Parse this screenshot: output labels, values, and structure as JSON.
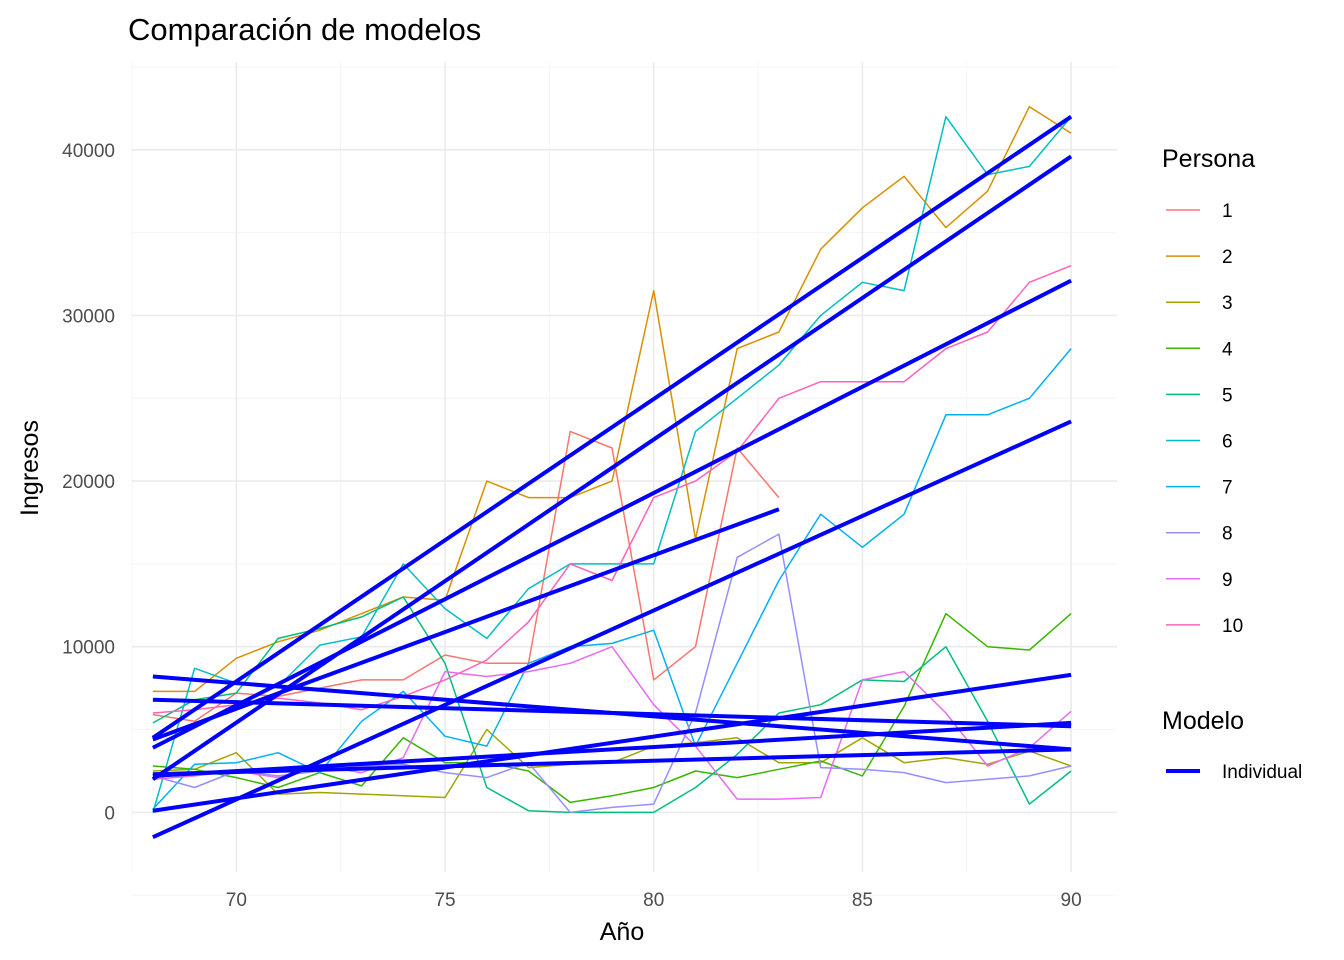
{
  "chart_data": {
    "type": "line",
    "title": "Comparación de modelos",
    "xlabel": "Año",
    "ylabel": "Ingresos",
    "xlim": [
      67.5,
      91.1
    ],
    "ylim": [
      -3600,
      45300
    ],
    "x_ticks": [
      70,
      75,
      80,
      85,
      90
    ],
    "y_ticks": [
      0,
      10000,
      20000,
      30000,
      40000
    ],
    "grid": true,
    "legend_position": "right",
    "legend": {
      "persona_title": "Persona",
      "modelo_title": "Modelo",
      "modelo_entries": [
        {
          "label": "Individual",
          "color": "#0000ff"
        }
      ]
    },
    "series": [
      {
        "name": "1",
        "color": "#f8766d",
        "x": [
          68,
          69,
          70,
          71,
          72,
          73,
          74,
          75,
          76,
          77,
          78,
          79,
          80,
          81,
          82,
          83
        ],
        "y": [
          5900,
          5500,
          7200,
          7000,
          7500,
          8000,
          8000,
          9500,
          9000,
          9000,
          23000,
          22000,
          8000,
          10000,
          22000,
          19000
        ]
      },
      {
        "name": "2",
        "color": "#d89000",
        "x": [
          68,
          69,
          70,
          71,
          72,
          73,
          74,
          75,
          76,
          77,
          78,
          79,
          80,
          81,
          82,
          83,
          84,
          85,
          86,
          87,
          88,
          89,
          90
        ],
        "y": [
          7300,
          7300,
          9300,
          10300,
          11000,
          12000,
          13000,
          12800,
          20000,
          19000,
          19000,
          20000,
          31500,
          16500,
          28000,
          29000,
          34000,
          36500,
          38400,
          35300,
          37500,
          42600,
          41000
        ]
      },
      {
        "name": "3",
        "color": "#a3a500",
        "x": [
          68,
          69,
          70,
          71,
          72,
          73,
          74,
          75,
          76,
          77,
          78,
          79,
          80,
          81,
          82,
          83,
          84,
          85,
          86,
          87,
          88,
          89,
          90
        ],
        "y": [
          2500,
          2600,
          3600,
          1100,
          1200,
          1100,
          1000,
          900,
          5000,
          2700,
          2900,
          3000,
          4000,
          4200,
          4500,
          3000,
          3000,
          4500,
          3000,
          3300,
          2900,
          3700,
          2800
        ]
      },
      {
        "name": "4",
        "color": "#39b600",
        "x": [
          68,
          69,
          70,
          71,
          72,
          73,
          74,
          75,
          76,
          77,
          78,
          79,
          80,
          81,
          82,
          83,
          84,
          85,
          86,
          87,
          88,
          89,
          90
        ],
        "y": [
          2800,
          2600,
          2100,
          1500,
          2400,
          1600,
          4500,
          3000,
          3000,
          2500,
          600,
          1000,
          1500,
          2500,
          2100,
          2600,
          3100,
          2200,
          6400,
          12000,
          10000,
          9800,
          12000
        ]
      },
      {
        "name": "5",
        "color": "#00bf7d",
        "x": [
          68,
          69,
          70,
          71,
          72,
          73,
          74,
          75,
          76,
          77,
          78,
          79,
          80,
          81,
          82,
          83,
          84,
          85,
          86,
          87,
          88,
          89,
          90
        ],
        "y": [
          5400,
          6800,
          7200,
          10500,
          11100,
          11800,
          13000,
          9000,
          1500,
          100,
          0,
          0,
          0,
          1500,
          3500,
          6000,
          6500,
          8000,
          7900,
          10000,
          5500,
          500,
          2500
        ]
      },
      {
        "name": "6",
        "color": "#00bfc4",
        "x": [
          68,
          69,
          70,
          71,
          72,
          73,
          74,
          75,
          76,
          77,
          78,
          79,
          80,
          81,
          82,
          83,
          84,
          85,
          86,
          87,
          88,
          89,
          90
        ],
        "y": [
          0,
          8700,
          7800,
          7600,
          10100,
          10600,
          15000,
          12300,
          10500,
          13500,
          15000,
          15000,
          15000,
          23000,
          25000,
          27000,
          30000,
          32000,
          31500,
          42000,
          38500,
          39000,
          42000
        ]
      },
      {
        "name": "7",
        "color": "#00b0f6",
        "x": [
          68,
          69,
          70,
          71,
          72,
          73,
          74,
          75,
          76,
          77,
          78,
          79,
          80,
          81,
          82,
          83,
          84,
          85,
          86,
          87,
          88,
          89,
          90
        ],
        "y": [
          200,
          2900,
          3000,
          3600,
          2400,
          5500,
          7300,
          4600,
          4000,
          9000,
          10000,
          10200,
          11000,
          4000,
          9000,
          14000,
          18000,
          16000,
          18000,
          24000,
          24000,
          25000,
          28000
        ]
      },
      {
        "name": "8",
        "color": "#9590ff",
        "x": [
          68,
          69,
          70,
          71,
          72,
          73,
          74,
          75,
          76,
          77,
          78,
          79,
          80,
          81,
          82,
          83,
          84,
          85,
          86,
          87,
          88,
          89,
          90
        ],
        "y": [
          2200,
          1500,
          2500,
          2200,
          2500,
          2800,
          2900,
          2400,
          2100,
          3000,
          0,
          300,
          500,
          6000,
          15400,
          16800,
          2700,
          2600,
          2400,
          1800,
          2000,
          2200,
          2800
        ]
      },
      {
        "name": "9",
        "color": "#e76bf3",
        "x": [
          68,
          69,
          70,
          71,
          72,
          73,
          74,
          75,
          76,
          77,
          78,
          79,
          80,
          81,
          82,
          83,
          84,
          85,
          86,
          87,
          88,
          89,
          90
        ],
        "y": [
          2000,
          2200,
          2500,
          2100,
          2800,
          2400,
          3300,
          8500,
          8200,
          8500,
          9000,
          10000,
          6500,
          4000,
          800,
          800,
          900,
          8000,
          8500,
          6000,
          2800,
          3900,
          6100
        ]
      },
      {
        "name": "10",
        "color": "#ff62bc",
        "x": [
          68,
          69,
          70,
          71,
          72,
          73,
          74,
          75,
          76,
          77,
          78,
          79,
          80,
          81,
          82,
          83,
          84,
          85,
          86,
          87,
          88,
          89,
          90
        ],
        "y": [
          6000,
          6200,
          6500,
          6900,
          6600,
          6200,
          7000,
          8000,
          9200,
          11500,
          15000,
          14000,
          19000,
          20000,
          21800,
          25000,
          26000,
          26000,
          26000,
          28000,
          29000,
          32000,
          33000
        ]
      }
    ],
    "fitted_lines": [
      {
        "label": "Individual",
        "color": "#0000ff",
        "x": [
          68,
          83
        ],
        "y": [
          4400,
          18300
        ]
      },
      {
        "label": "Individual",
        "color": "#0000ff",
        "x": [
          68,
          90
        ],
        "y": [
          4500,
          42000
        ]
      },
      {
        "label": "Individual",
        "color": "#0000ff",
        "x": [
          68,
          90
        ],
        "y": [
          2300,
          3800
        ]
      },
      {
        "label": "Individual",
        "color": "#0000ff",
        "x": [
          68,
          90
        ],
        "y": [
          100,
          8300
        ]
      },
      {
        "label": "Individual",
        "color": "#0000ff",
        "x": [
          68,
          90
        ],
        "y": [
          8200,
          3800
        ]
      },
      {
        "label": "Individual",
        "color": "#0000ff",
        "x": [
          68,
          90
        ],
        "y": [
          2000,
          39600
        ]
      },
      {
        "label": "Individual",
        "color": "#0000ff",
        "x": [
          68,
          90
        ],
        "y": [
          -1500,
          23600
        ]
      },
      {
        "label": "Individual",
        "color": "#0000ff",
        "x": [
          68,
          90
        ],
        "y": [
          6800,
          5200
        ]
      },
      {
        "label": "Individual",
        "color": "#0000ff",
        "x": [
          68,
          90
        ],
        "y": [
          2200,
          5400
        ]
      },
      {
        "label": "Individual",
        "color": "#0000ff",
        "x": [
          68,
          90
        ],
        "y": [
          3900,
          32100
        ]
      }
    ]
  }
}
